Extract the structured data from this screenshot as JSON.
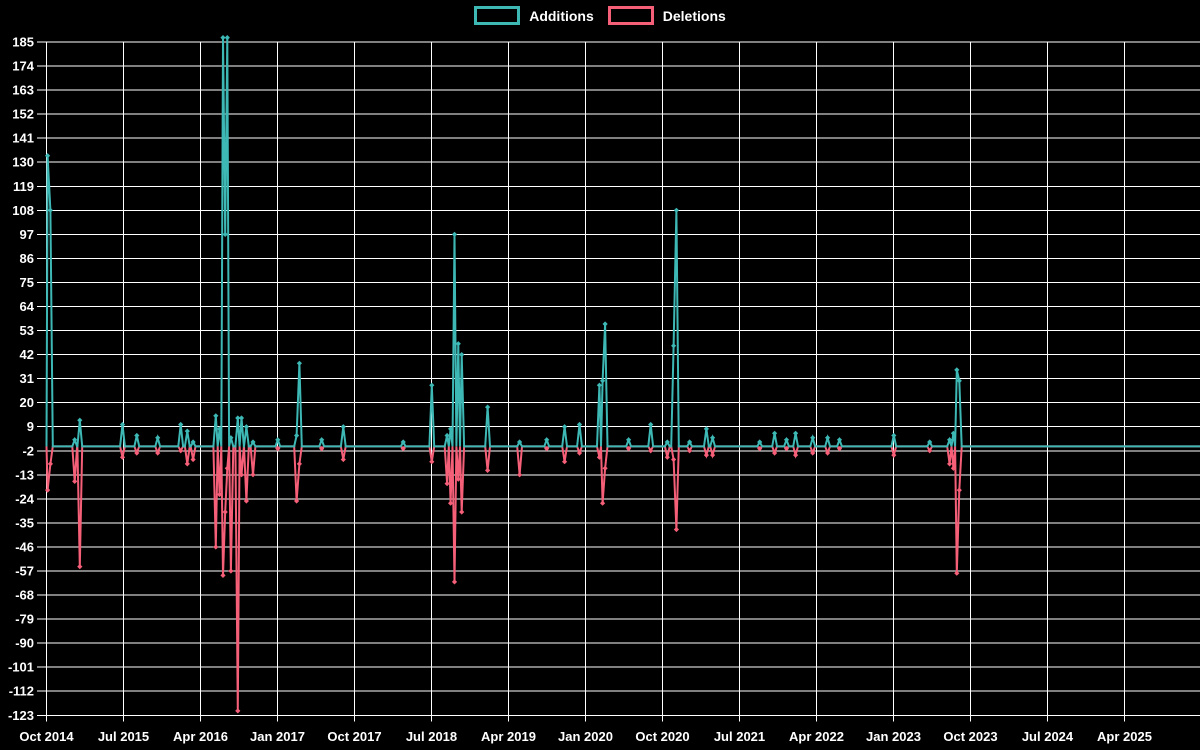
{
  "legend": {
    "additions_label": "Additions",
    "deletions_label": "Deletions"
  },
  "chart_data": {
    "type": "line",
    "title": "",
    "background_color": "#000000",
    "grid_color": "#ffffff",
    "text_color": "#ffffff",
    "legend_position": "top-center",
    "grid": true,
    "baseline_value": 0,
    "series": [
      {
        "name": "Additions",
        "color": "#3db8b5"
      },
      {
        "name": "Deletions",
        "color": "#f55f78"
      }
    ],
    "y_axis": {
      "ticks": [
        185,
        174,
        163,
        152,
        141,
        130,
        119,
        108,
        97,
        86,
        75,
        64,
        53,
        42,
        31,
        20,
        9,
        -2,
        -13,
        -24,
        -35,
        -46,
        -57,
        -68,
        -79,
        -90,
        -101,
        -112,
        -123
      ],
      "top_value": 187,
      "bottom_value": -123
    },
    "x_axis": {
      "ticks": [
        "Oct 2014",
        "Jul 2015",
        "Apr 2016",
        "Jan 2017",
        "Oct 2017",
        "Jul 2018",
        "Apr 2019",
        "Jan 2020",
        "Oct 2020",
        "Jul 2021",
        "Apr 2022",
        "Jan 2023",
        "Oct 2023",
        "Jul 2024",
        "Apr 2025"
      ],
      "months_per_tick": 9,
      "start": "2014-10",
      "end_of_plot": "2026-01"
    },
    "points_format": [
      "week_date",
      "additions",
      "deletions"
    ],
    "points": [
      [
        "2014-10-05",
        133,
        -20
      ],
      [
        "2014-10-15",
        108,
        -8
      ],
      [
        "2015-01-10",
        3,
        -16
      ],
      [
        "2015-01-28",
        12,
        -55
      ],
      [
        "2015-06-28",
        10,
        -5
      ],
      [
        "2015-08-18",
        5,
        -3
      ],
      [
        "2015-11-01",
        4,
        -3
      ],
      [
        "2016-01-22",
        10,
        -2
      ],
      [
        "2016-02-15",
        7,
        -8
      ],
      [
        "2016-03-05",
        2,
        -6
      ],
      [
        "2016-05-25",
        14,
        -46
      ],
      [
        "2016-06-08",
        8,
        -22
      ],
      [
        "2016-06-20",
        187,
        -59
      ],
      [
        "2016-06-28",
        97,
        -30
      ],
      [
        "2016-07-05",
        187,
        -10
      ],
      [
        "2016-07-18",
        4,
        -57
      ],
      [
        "2016-08-12",
        13,
        -121
      ],
      [
        "2016-08-25",
        13,
        -13
      ],
      [
        "2016-09-12",
        9,
        -25
      ],
      [
        "2016-10-05",
        2,
        -13
      ],
      [
        "2017-01-02",
        3,
        -1
      ],
      [
        "2017-03-08",
        5,
        -25
      ],
      [
        "2017-03-18",
        38,
        -8
      ],
      [
        "2017-06-06",
        3,
        -1
      ],
      [
        "2017-08-22",
        9,
        -6
      ],
      [
        "2018-03-22",
        2,
        -1
      ],
      [
        "2018-07-02",
        28,
        -7
      ],
      [
        "2018-08-26",
        5,
        -17
      ],
      [
        "2018-09-08",
        8,
        -26
      ],
      [
        "2018-09-22",
        97,
        -62
      ],
      [
        "2018-10-05",
        47,
        -15
      ],
      [
        "2018-10-17",
        42,
        -30
      ],
      [
        "2019-01-18",
        18,
        -11
      ],
      [
        "2019-05-10",
        2,
        -13
      ],
      [
        "2019-08-15",
        3,
        -1
      ],
      [
        "2019-10-18",
        9,
        -7
      ],
      [
        "2019-12-10",
        10,
        -3
      ],
      [
        "2020-02-20",
        28,
        -5
      ],
      [
        "2020-03-01",
        30,
        -26
      ],
      [
        "2020-03-10",
        56,
        -10
      ],
      [
        "2020-06-02",
        3,
        -1
      ],
      [
        "2020-08-20",
        10,
        -2
      ],
      [
        "2020-10-18",
        2,
        -5
      ],
      [
        "2020-11-10",
        46,
        -6
      ],
      [
        "2020-11-20",
        108,
        -38
      ],
      [
        "2021-01-06",
        2,
        -2
      ],
      [
        "2021-03-05",
        8,
        -4
      ],
      [
        "2021-03-27",
        4,
        -4
      ],
      [
        "2021-09-12",
        2,
        -1
      ],
      [
        "2021-11-04",
        6,
        -3
      ],
      [
        "2021-12-16",
        3,
        -1
      ],
      [
        "2022-01-18",
        6,
        -4
      ],
      [
        "2022-03-18",
        4,
        -3
      ],
      [
        "2022-05-10",
        4,
        -3
      ],
      [
        "2022-06-22",
        3,
        -1
      ],
      [
        "2023-01-02",
        5,
        -4
      ],
      [
        "2023-05-08",
        2,
        -2
      ],
      [
        "2023-07-18",
        3,
        -8
      ],
      [
        "2023-08-01",
        6,
        -10
      ],
      [
        "2023-08-13",
        35,
        -58
      ],
      [
        "2023-08-22",
        30,
        -20
      ]
    ]
  }
}
